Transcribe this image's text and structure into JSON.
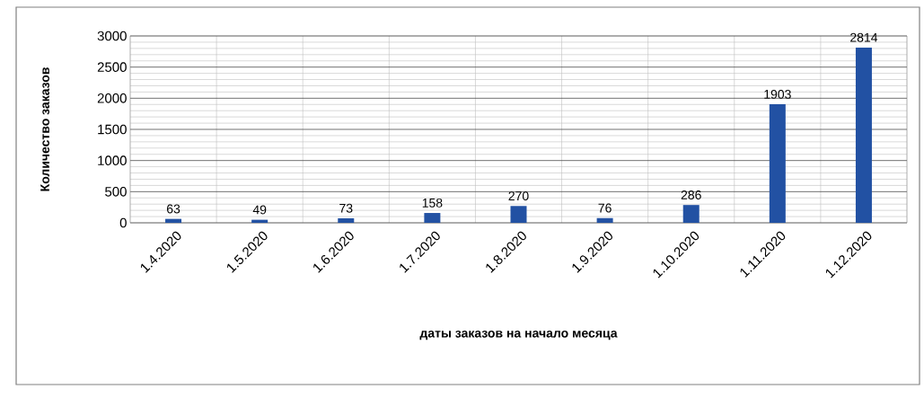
{
  "chart_data": {
    "type": "bar",
    "xlabel": "даты заказов на начало месяца",
    "ylabel": "Количество заказов",
    "categories": [
      "1.4.2020",
      "1.5.2020",
      "1.6.2020",
      "1.7.2020",
      "1.8.2020",
      "1.9.2020",
      "1.10.2020",
      "1.11.2020",
      "1.12.2020"
    ],
    "values": [
      63,
      49,
      73,
      158,
      270,
      76,
      286,
      1903,
      2814
    ],
    "color": "#2251a3",
    "ylim": [
      0,
      3000
    ],
    "yticks": [
      0,
      500,
      1000,
      1500,
      2000,
      2500,
      3000
    ],
    "grid": true,
    "value_labels": [
      "63",
      "49",
      "73",
      "158",
      "270",
      "76",
      "286",
      "1903",
      "2814"
    ]
  }
}
